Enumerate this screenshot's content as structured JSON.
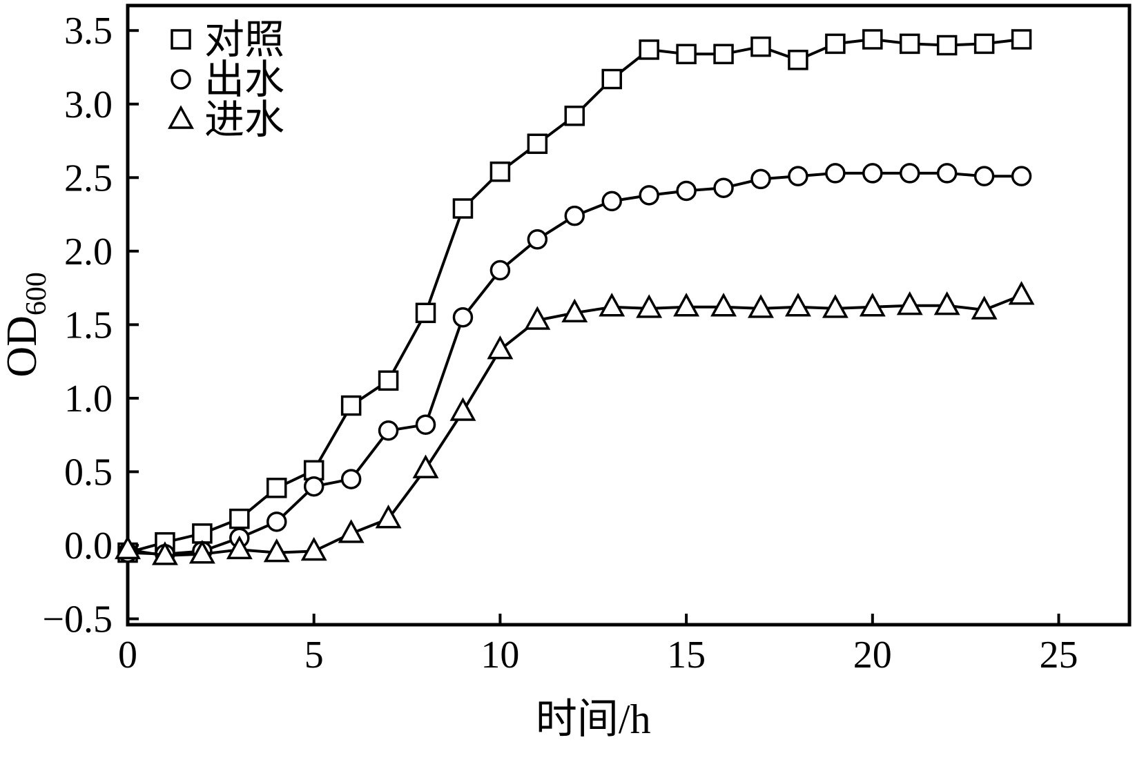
{
  "chart_data": {
    "type": "line",
    "title": "",
    "xlabel": "时间/h",
    "ylabel_main": "OD",
    "ylabel_sub": "600",
    "grid": false,
    "legend_position": "top-left-inside",
    "line_color": "#000000",
    "marker_fill": "#ffffff",
    "xlim": [
      0,
      26.9
    ],
    "ylim": [
      -0.54,
      3.67
    ],
    "xticks": [
      0,
      5,
      10,
      15,
      20,
      25
    ],
    "xtick_labels": [
      "0",
      "5",
      "10",
      "15",
      "20",
      "25"
    ],
    "yticks": [
      -0.5,
      0.0,
      0.5,
      1.0,
      1.5,
      2.0,
      2.5,
      3.0,
      3.5
    ],
    "ytick_labels": [
      "−0.5",
      "0.0",
      "0.5",
      "1.0",
      "1.5",
      "2.0",
      "2.5",
      "3.0",
      "3.5"
    ],
    "x": [
      0,
      1,
      2,
      3,
      4,
      5,
      6,
      7,
      8,
      9,
      10,
      11,
      12,
      13,
      14,
      15,
      16,
      17,
      18,
      19,
      20,
      21,
      22,
      23,
      24
    ],
    "series": [
      {
        "name": "对照",
        "marker": "square",
        "values": [
          -0.05,
          0.02,
          0.08,
          0.18,
          0.39,
          0.51,
          0.95,
          1.12,
          1.58,
          2.29,
          2.54,
          2.73,
          2.92,
          3.17,
          3.37,
          3.34,
          3.34,
          3.39,
          3.3,
          3.41,
          3.44,
          3.41,
          3.4,
          3.41,
          3.44
        ]
      },
      {
        "name": "出水",
        "marker": "circle",
        "values": [
          -0.05,
          -0.06,
          -0.04,
          0.05,
          0.16,
          0.4,
          0.45,
          0.78,
          0.82,
          1.55,
          1.87,
          2.08,
          2.24,
          2.34,
          2.38,
          2.41,
          2.43,
          2.49,
          2.51,
          2.53,
          2.53,
          2.53,
          2.53,
          2.51,
          2.51
        ]
      },
      {
        "name": "进水",
        "marker": "triangle",
        "values": [
          -0.03,
          -0.07,
          -0.06,
          -0.03,
          -0.05,
          -0.04,
          0.08,
          0.18,
          0.52,
          0.91,
          1.33,
          1.53,
          1.58,
          1.62,
          1.61,
          1.62,
          1.62,
          1.61,
          1.62,
          1.61,
          1.62,
          1.63,
          1.63,
          1.6,
          1.7
        ]
      }
    ]
  }
}
